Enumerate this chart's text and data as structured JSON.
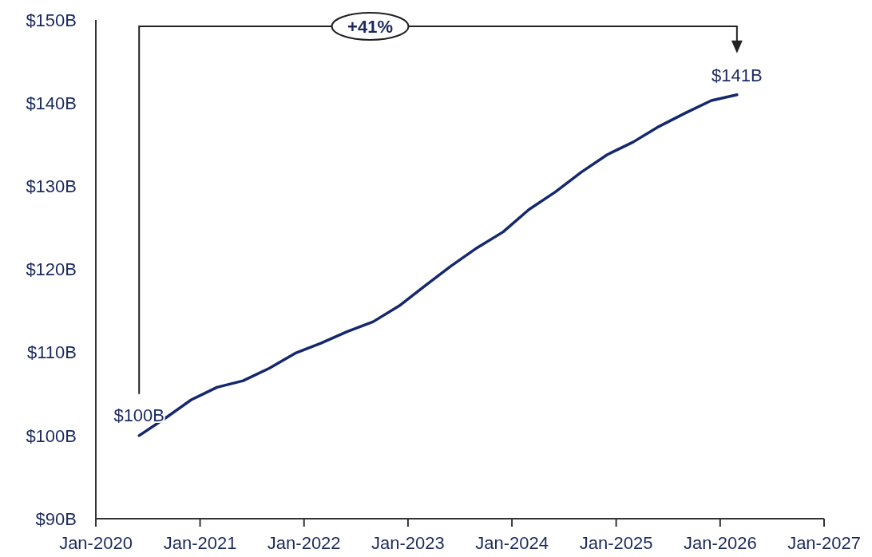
{
  "chart_data": {
    "type": "line",
    "x": [
      "2020-06",
      "2020-09",
      "2020-12",
      "2021-03",
      "2021-06",
      "2021-09",
      "2021-12",
      "2022-03",
      "2022-06",
      "2022-09",
      "2022-12",
      "2023-03",
      "2023-06",
      "2023-09",
      "2023-12",
      "2024-03",
      "2024-06",
      "2024-09",
      "2024-12",
      "2025-03",
      "2025-06",
      "2025-09",
      "2025-12",
      "2026-03"
    ],
    "series": [
      {
        "color": "#14286e",
        "values": [
          100,
          102.1,
          104.3,
          105.8,
          106.6,
          108.1,
          109.9,
          111.1,
          112.5,
          113.7,
          115.6,
          118.0,
          120.4,
          122.6,
          124.5,
          127.2,
          129.3,
          131.7,
          133.8,
          135.3,
          137.2,
          138.8,
          140.3,
          141
        ],
        "value_labels": [
          "$100B",
          null,
          null,
          null,
          null,
          null,
          null,
          null,
          null,
          null,
          null,
          null,
          null,
          null,
          null,
          null,
          null,
          null,
          null,
          null,
          null,
          null,
          null,
          "$141B"
        ]
      }
    ],
    "xlim": [
      "2020-01",
      "2027-01"
    ],
    "xticks": [
      {
        "value": "2020-01",
        "label": "Jan-2020"
      },
      {
        "value": "2021-01",
        "label": "Jan-2021"
      },
      {
        "value": "2022-01",
        "label": "Jan-2022"
      },
      {
        "value": "2023-01",
        "label": "Jan-2023"
      },
      {
        "value": "2024-01",
        "label": "Jan-2024"
      },
      {
        "value": "2025-01",
        "label": "Jan-2025"
      },
      {
        "value": "2026-01",
        "label": "Jan-2026"
      },
      {
        "value": "2027-01",
        "label": "Jan-2027"
      }
    ],
    "ylim": [
      90,
      150
    ],
    "yticks": [
      {
        "value": 90,
        "label": "$90B"
      },
      {
        "value": 100,
        "label": "$100B"
      },
      {
        "value": 110,
        "label": "$110B"
      },
      {
        "value": 120,
        "label": "$120B"
      },
      {
        "value": 130,
        "label": "$130B"
      },
      {
        "value": 140,
        "label": "$140B"
      },
      {
        "value": 150,
        "label": "$150B"
      }
    ],
    "grid": false,
    "marker": "none",
    "line_style": "solid",
    "annotations": [
      "+41%"
    ]
  }
}
